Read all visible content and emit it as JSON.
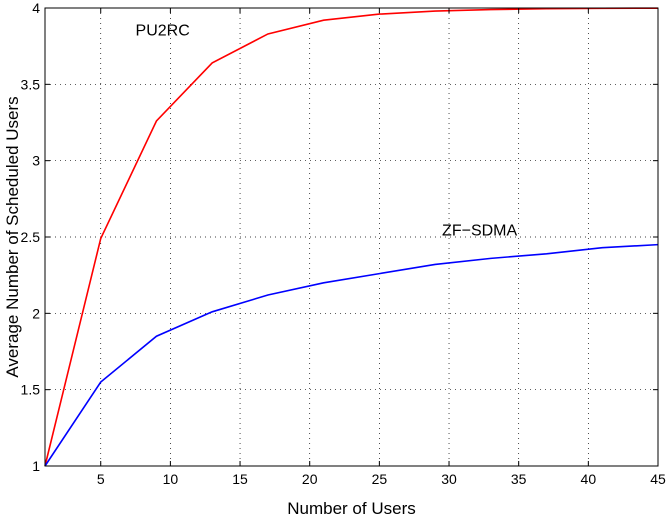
{
  "chart_data": {
    "type": "line",
    "title": "",
    "xlabel": "Number of Users",
    "ylabel": "Average Number of Scheduled Users",
    "xlim": [
      1,
      45
    ],
    "ylim": [
      1,
      4
    ],
    "xticks": [
      5,
      10,
      15,
      20,
      25,
      30,
      35,
      40,
      45
    ],
    "yticks": [
      1,
      1.5,
      2,
      2.5,
      3,
      3.5,
      4
    ],
    "grid": true,
    "x": [
      1,
      5,
      9,
      13,
      17,
      21,
      25,
      29,
      33,
      37,
      41,
      45
    ],
    "series": [
      {
        "name": "PU2RC",
        "color": "#ff0000",
        "values": [
          1.0,
          2.49,
          3.26,
          3.64,
          3.83,
          3.92,
          3.96,
          3.98,
          3.99,
          3.995,
          3.998,
          3.999
        ]
      },
      {
        "name": "ZF-SDMA",
        "color": "#0000ff",
        "values": [
          1.0,
          1.55,
          1.85,
          2.01,
          2.12,
          2.2,
          2.26,
          2.32,
          2.36,
          2.39,
          2.43,
          2.45
        ]
      }
    ],
    "annotations": [
      {
        "text": "PU2RC",
        "x": 7.5,
        "y": 3.82
      },
      {
        "text": "ZF−SDMA",
        "x": 29.5,
        "y": 2.51
      }
    ]
  }
}
